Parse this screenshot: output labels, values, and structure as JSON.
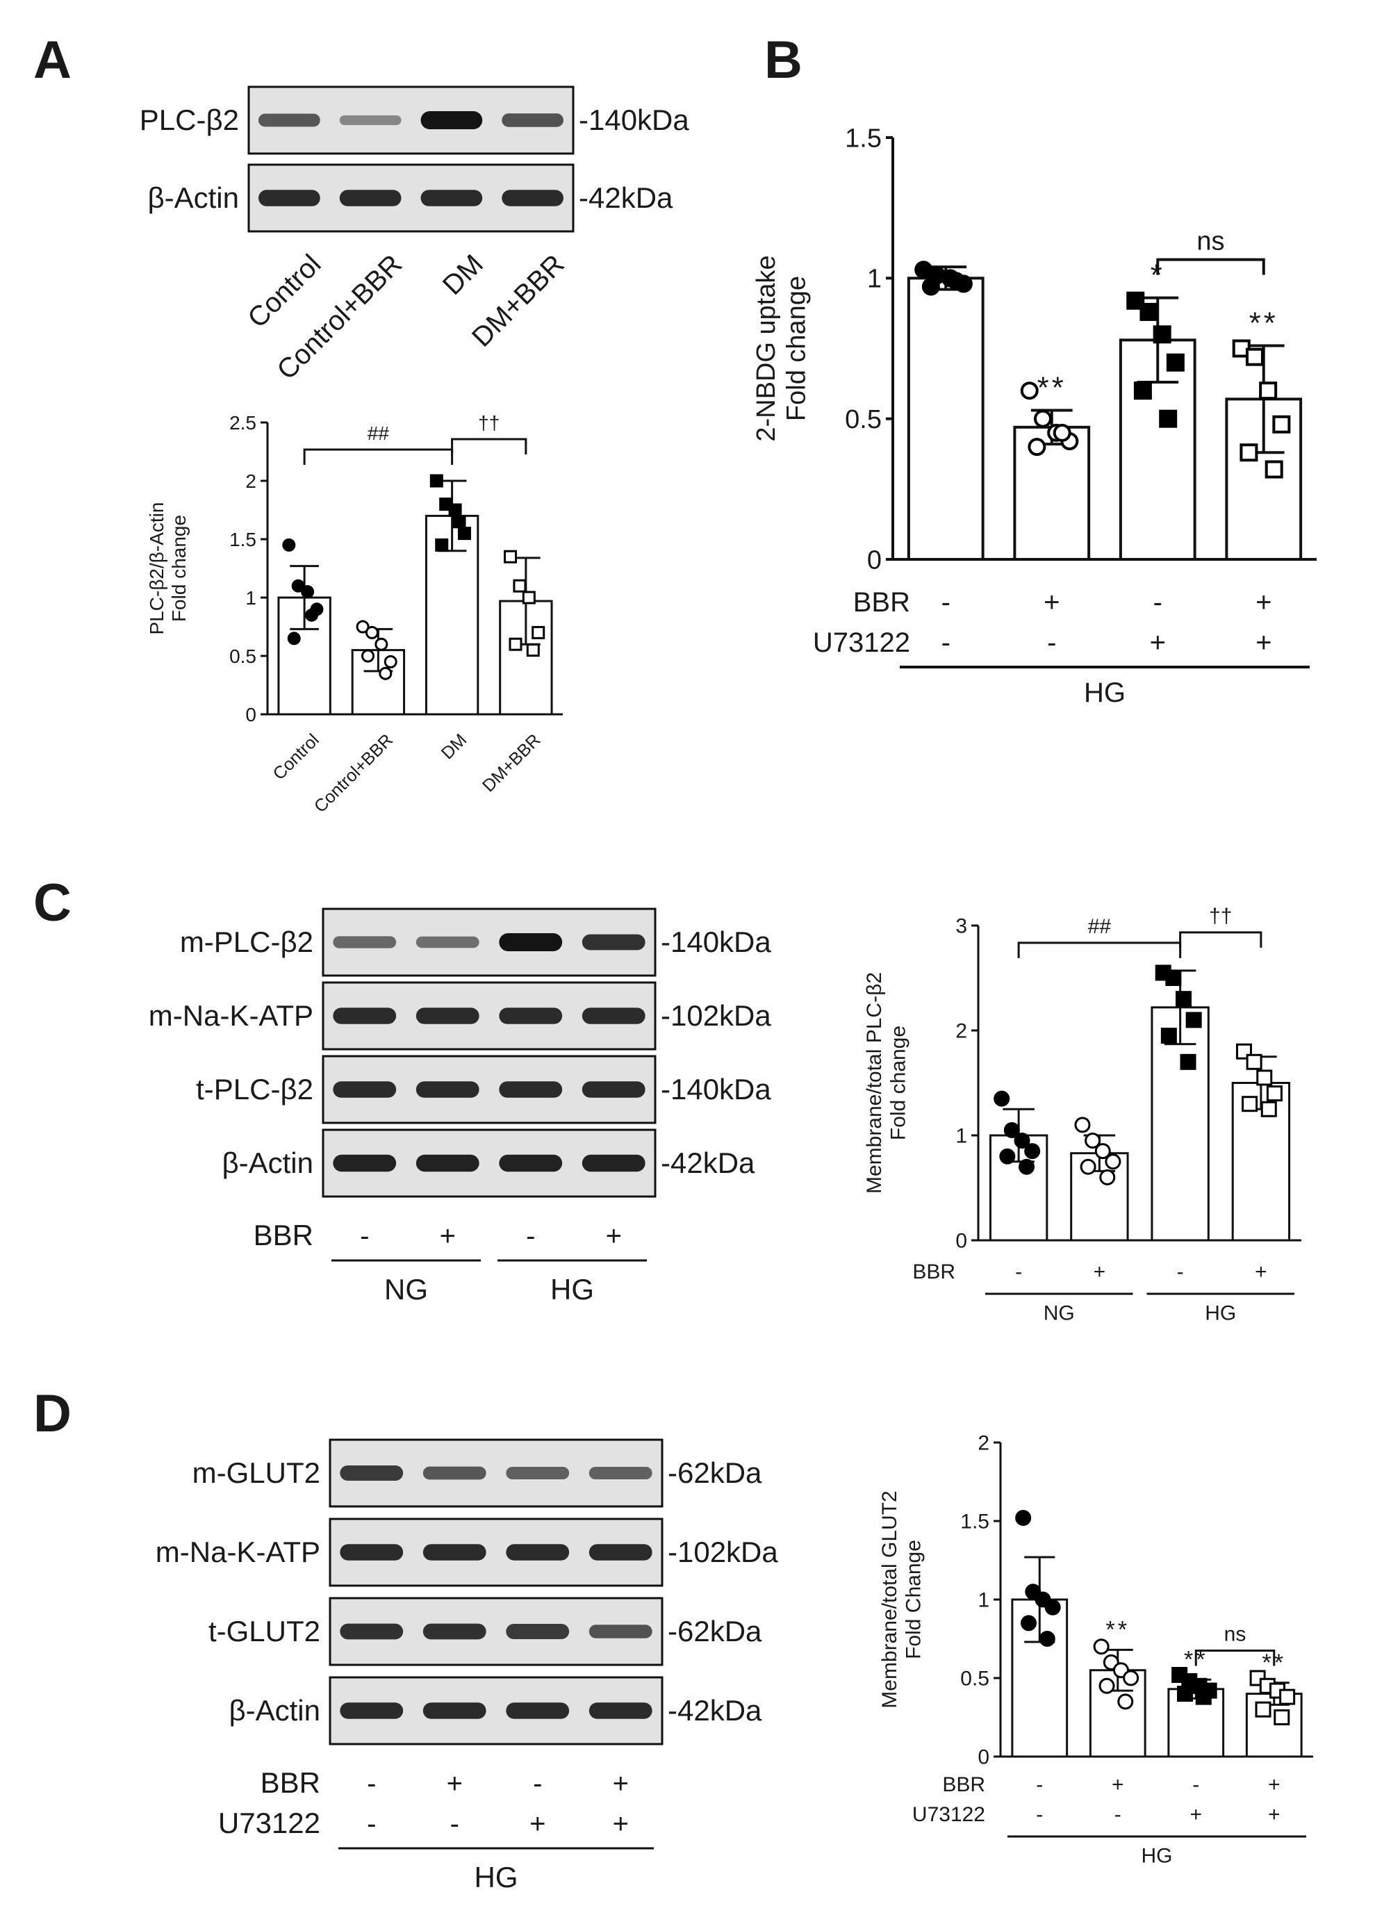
{
  "panels": {
    "A": {
      "letter": "A",
      "blots": [
        {
          "label": "PLC-β2",
          "kda": "-140kDa",
          "intensity": [
            0.55,
            0.25,
            1.0,
            0.6
          ]
        },
        {
          "label": "β-Actin",
          "kda": "-42kDa",
          "intensity": [
            0.85,
            0.85,
            0.85,
            0.85
          ]
        }
      ],
      "lanes": [
        "Control",
        "Control+BBR",
        "DM",
        "DM+BBR"
      ]
    },
    "B": {
      "letter": "B"
    },
    "C": {
      "letter": "C",
      "blots": [
        {
          "label": "m-PLC-β2",
          "kda": "-140kDa",
          "intensity": [
            0.45,
            0.4,
            1.0,
            0.8
          ]
        },
        {
          "label": "m-Na-K-ATP",
          "kda": "-102kDa",
          "intensity": [
            0.85,
            0.85,
            0.85,
            0.85
          ]
        },
        {
          "label": "t-PLC-β2",
          "kda": "-140kDa",
          "intensity": [
            0.85,
            0.85,
            0.85,
            0.85
          ]
        },
        {
          "label": "β-Actin",
          "kda": "-42kDa",
          "intensity": [
            0.9,
            0.9,
            0.9,
            0.9
          ]
        }
      ],
      "condition_rows": [
        {
          "label": "BBR",
          "marks": [
            "-",
            "+",
            "-",
            "+"
          ]
        }
      ],
      "groups": [
        {
          "label": "NG",
          "lanes": [
            0,
            1
          ]
        },
        {
          "label": "HG",
          "lanes": [
            2,
            3
          ]
        }
      ]
    },
    "D": {
      "letter": "D",
      "blots": [
        {
          "label": "m-GLUT2",
          "kda": "-62kDa",
          "intensity": [
            0.75,
            0.55,
            0.5,
            0.5
          ]
        },
        {
          "label": "m-Na-K-ATP",
          "kda": "-102kDa",
          "intensity": [
            0.85,
            0.85,
            0.85,
            0.85
          ]
        },
        {
          "label": "t-GLUT2",
          "kda": "-62kDa",
          "intensity": [
            0.8,
            0.8,
            0.75,
            0.6
          ]
        },
        {
          "label": "β-Actin",
          "kda": "-42kDa",
          "intensity": [
            0.85,
            0.85,
            0.85,
            0.85
          ]
        }
      ],
      "condition_rows": [
        {
          "label": "BBR",
          "marks": [
            "-",
            "+",
            "-",
            "+"
          ]
        },
        {
          "label": "U73122",
          "marks": [
            "-",
            "-",
            "+",
            "+"
          ]
        }
      ],
      "groups": [
        {
          "label": "HG",
          "lanes": [
            0,
            1,
            2,
            3
          ]
        }
      ]
    }
  },
  "chart_data": [
    {
      "id": "A-chart",
      "type": "bar",
      "title": "",
      "ylabel_lines": [
        "PLC-β2/β-Actin",
        "Fold change"
      ],
      "ylim": [
        0,
        2.5
      ],
      "yticks": [
        0.0,
        0.5,
        1.0,
        1.5,
        2.0,
        2.5
      ],
      "categories": [
        "Control",
        "Control+BBR",
        "DM",
        "DM+BBR"
      ],
      "values": [
        1.0,
        0.55,
        1.7,
        0.97
      ],
      "errors": [
        0.27,
        0.18,
        0.3,
        0.37
      ],
      "points": [
        [
          1.45,
          1.1,
          1.05,
          0.9,
          0.65,
          0.85
        ],
        [
          0.75,
          0.7,
          0.6,
          0.45,
          0.5,
          0.35
        ],
        [
          2.0,
          1.8,
          1.75,
          1.55,
          1.45,
          1.65
        ],
        [
          1.35,
          1.1,
          1.0,
          0.7,
          0.6,
          0.55
        ]
      ],
      "markers": [
        "filled-circle",
        "open-circle",
        "filled-square",
        "open-square"
      ],
      "brackets": [
        {
          "from": 0,
          "to": 2,
          "label": "##"
        },
        {
          "from": 2,
          "to": 3,
          "label": "††"
        }
      ],
      "grid": false
    },
    {
      "id": "B-chart",
      "type": "bar",
      "title": "",
      "ylabel_lines": [
        "2-NBDG uptake",
        "Fold change"
      ],
      "ylim": [
        0,
        1.5
      ],
      "yticks": [
        0.0,
        0.5,
        1.0,
        1.5
      ],
      "categories": [
        "",
        "",
        "",
        ""
      ],
      "values": [
        1.0,
        0.47,
        0.78,
        0.57
      ],
      "errors": [
        0.04,
        0.06,
        0.15,
        0.19
      ],
      "points": [
        [
          1.03,
          1.01,
          1.0,
          0.98,
          0.97,
          0.99
        ],
        [
          0.6,
          0.5,
          0.45,
          0.42,
          0.4,
          0.45
        ],
        [
          0.92,
          0.88,
          0.8,
          0.7,
          0.6,
          0.5
        ],
        [
          0.75,
          0.72,
          0.6,
          0.48,
          0.38,
          0.32
        ]
      ],
      "markers": [
        "filled-circle",
        "open-circle",
        "filled-square",
        "open-square"
      ],
      "stars": [
        "",
        "**",
        "*",
        "**"
      ],
      "brackets": [
        {
          "from": 2,
          "to": 3,
          "label": "ns"
        }
      ],
      "condition_rows": [
        {
          "label": "BBR",
          "marks": [
            "-",
            "+",
            "-",
            "+"
          ]
        },
        {
          "label": "U73122",
          "marks": [
            "-",
            "-",
            "+",
            "+"
          ]
        }
      ],
      "groups": [
        {
          "label": "HG",
          "lanes": [
            0,
            1,
            2,
            3
          ]
        }
      ],
      "grid": false
    },
    {
      "id": "C-chart",
      "type": "bar",
      "title": "",
      "ylabel_lines": [
        "Membrane/total PLC-β2",
        "Fold change"
      ],
      "ylim": [
        0,
        3
      ],
      "yticks": [
        0,
        1,
        2,
        3
      ],
      "categories": [
        "",
        "",
        "",
        ""
      ],
      "values": [
        1.0,
        0.83,
        2.22,
        1.5
      ],
      "errors": [
        0.25,
        0.17,
        0.35,
        0.25
      ],
      "points": [
        [
          1.35,
          1.05,
          0.95,
          0.85,
          0.8,
          0.7
        ],
        [
          1.1,
          0.95,
          0.85,
          0.75,
          0.7,
          0.6
        ],
        [
          2.55,
          2.5,
          2.3,
          2.1,
          1.95,
          1.7
        ],
        [
          1.8,
          1.7,
          1.55,
          1.4,
          1.3,
          1.25
        ]
      ],
      "markers": [
        "filled-circle",
        "open-circle",
        "filled-square",
        "open-square"
      ],
      "brackets": [
        {
          "from": 0,
          "to": 2,
          "label": "##"
        },
        {
          "from": 2,
          "to": 3,
          "label": "††"
        }
      ],
      "condition_rows": [
        {
          "label": "BBR",
          "marks": [
            "-",
            "+",
            "-",
            "+"
          ]
        }
      ],
      "groups": [
        {
          "label": "NG",
          "lanes": [
            0,
            1
          ]
        },
        {
          "label": "HG",
          "lanes": [
            2,
            3
          ]
        }
      ],
      "grid": false
    },
    {
      "id": "D-chart",
      "type": "bar",
      "title": "",
      "ylabel_lines": [
        "Membrane/total GLUT2",
        "Fold Change"
      ],
      "ylim": [
        0,
        2.0
      ],
      "yticks": [
        0.0,
        0.5,
        1.0,
        1.5,
        2.0
      ],
      "categories": [
        "",
        "",
        "",
        ""
      ],
      "values": [
        1.0,
        0.55,
        0.43,
        0.4
      ],
      "errors": [
        0.27,
        0.13,
        0.06,
        0.07
      ],
      "points": [
        [
          1.52,
          1.05,
          1.0,
          0.95,
          0.85,
          0.75
        ],
        [
          0.7,
          0.6,
          0.55,
          0.5,
          0.45,
          0.35
        ],
        [
          0.52,
          0.48,
          0.45,
          0.42,
          0.4,
          0.38
        ],
        [
          0.5,
          0.45,
          0.42,
          0.38,
          0.3,
          0.25
        ]
      ],
      "markers": [
        "filled-circle",
        "open-circle",
        "filled-square",
        "open-square"
      ],
      "stars": [
        "",
        "**",
        "**",
        "**"
      ],
      "brackets": [
        {
          "from": 2,
          "to": 3,
          "label": "ns"
        }
      ],
      "condition_rows": [
        {
          "label": "BBR",
          "marks": [
            "-",
            "+",
            "-",
            "+"
          ]
        },
        {
          "label": "U73122",
          "marks": [
            "-",
            "-",
            "+",
            "+"
          ]
        }
      ],
      "groups": [
        {
          "label": "HG",
          "lanes": [
            0,
            1,
            2,
            3
          ]
        }
      ],
      "grid": false
    }
  ]
}
